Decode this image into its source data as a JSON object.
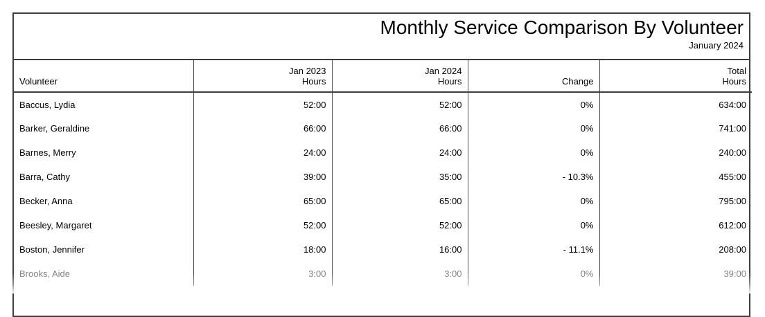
{
  "report": {
    "title": "Monthly Service Comparison By Volunteer",
    "subtitle": "January 2024"
  },
  "table": {
    "columns": [
      {
        "label": "Volunteer"
      },
      {
        "label": "Jan 2023\nHours"
      },
      {
        "label": "Jan 2024\nHours"
      },
      {
        "label": "Change"
      },
      {
        "label": "Total\nHours"
      }
    ],
    "rows": [
      {
        "volunteer": "Baccus, Lydia",
        "jan2023": "52:00",
        "jan2024": "52:00",
        "change": "0%",
        "total": "634:00",
        "faded": false
      },
      {
        "volunteer": "Barker, Geraldine",
        "jan2023": "66:00",
        "jan2024": "66:00",
        "change": "0%",
        "total": "741:00",
        "faded": false
      },
      {
        "volunteer": "Barnes, Merry",
        "jan2023": "24:00",
        "jan2024": "24:00",
        "change": "0%",
        "total": "240:00",
        "faded": false
      },
      {
        "volunteer": "Barra, Cathy",
        "jan2023": "39:00",
        "jan2024": "35:00",
        "change": "- 10.3%",
        "total": "455:00",
        "faded": false
      },
      {
        "volunteer": "Becker, Anna",
        "jan2023": "65:00",
        "jan2024": "65:00",
        "change": "0%",
        "total": "795:00",
        "faded": false
      },
      {
        "volunteer": "Beesley, Margaret",
        "jan2023": "52:00",
        "jan2024": "52:00",
        "change": "0%",
        "total": "612:00",
        "faded": false
      },
      {
        "volunteer": "Boston, Jennifer",
        "jan2023": "18:00",
        "jan2024": "16:00",
        "change": "- 11.1%",
        "total": "208:00",
        "faded": false
      },
      {
        "volunteer": "Brooks, Aide",
        "jan2023": "3:00",
        "jan2024": "3:00",
        "change": "0%",
        "total": "39:00",
        "faded": true
      }
    ],
    "colors": {
      "border_dark": "#3d3d3d",
      "border_light": "#4d4d4d",
      "faded_text": "#7d7d7d"
    }
  }
}
